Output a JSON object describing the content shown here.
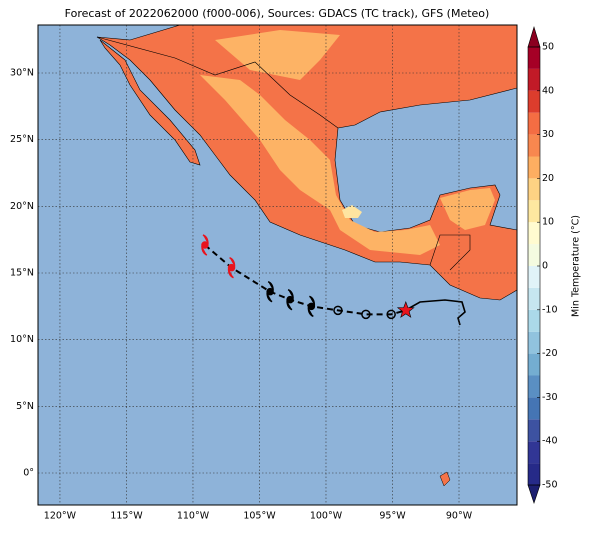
{
  "chart_data": {
    "type": "map",
    "title": "Forecast of 2022062000 (f000-006), Sources: GDACS (TC track), GFS (Meteo)",
    "xlim": [
      -121.65,
      -85.64
    ],
    "ylim": [
      -2.4,
      33.6
    ],
    "xticks": [
      {
        "value": -120,
        "label": "120°W"
      },
      {
        "value": -115,
        "label": "115°W"
      },
      {
        "value": -110,
        "label": "110°W"
      },
      {
        "value": -105,
        "label": "105°W"
      },
      {
        "value": -100,
        "label": "100°W"
      },
      {
        "value": -95,
        "label": "95°W"
      },
      {
        "value": -90,
        "label": "90°W"
      }
    ],
    "yticks": [
      {
        "value": 0,
        "label": "0°"
      },
      {
        "value": 5,
        "label": "5°N"
      },
      {
        "value": 10,
        "label": "10°N"
      },
      {
        "value": 15,
        "label": "15°N"
      },
      {
        "value": 20,
        "label": "20°N"
      },
      {
        "value": 25,
        "label": "25°N"
      },
      {
        "value": 30,
        "label": "30°N"
      }
    ],
    "grid": true,
    "track": {
      "lon": [
        -109.1,
        -107.1,
        -104.2,
        -102.7,
        -101.1,
        -99.1,
        -97.0,
        -95.1,
        -94.0
      ],
      "lat": [
        17.1,
        15.4,
        13.6,
        13.0,
        12.5,
        12.2,
        11.9,
        11.9,
        12.2
      ],
      "markers": [
        "hurricane",
        "hurricane",
        "hurricane",
        "hurricane",
        "hurricane",
        "circle",
        "circle",
        "circle",
        "star"
      ],
      "colors": [
        "#e8141e",
        "#e8141e",
        "#000000",
        "#000000",
        "#000000",
        "#000000",
        "#000000",
        "#000000",
        "#e8141e"
      ]
    },
    "colorbar": {
      "label": "Min Temperature (°C)",
      "lim": [
        -50,
        50
      ],
      "ticks": [
        -50,
        -40,
        -30,
        -20,
        -10,
        0,
        10,
        20,
        30,
        40,
        50
      ],
      "levels": [
        -50,
        -45,
        -40,
        -35,
        -30,
        -25,
        -20,
        -15,
        -10,
        -5,
        0,
        5,
        10,
        15,
        20,
        25,
        30,
        35,
        40,
        45,
        50
      ],
      "colors": [
        "#262a88",
        "#313695",
        "#3d52a1",
        "#4575b4",
        "#5a8fc3",
        "#74add1",
        "#91c3de",
        "#abd9e9",
        "#c6e6f0",
        "#e0f3f8",
        "#f4fbe0",
        "#fffbd0",
        "#fee8a0",
        "#fed283",
        "#fdae61",
        "#f8874f",
        "#f46d43",
        "#dc3d2d",
        "#c11a27",
        "#a50026"
      ],
      "extend_colors": [
        "#1c1f70",
        "#8b0020"
      ]
    }
  }
}
